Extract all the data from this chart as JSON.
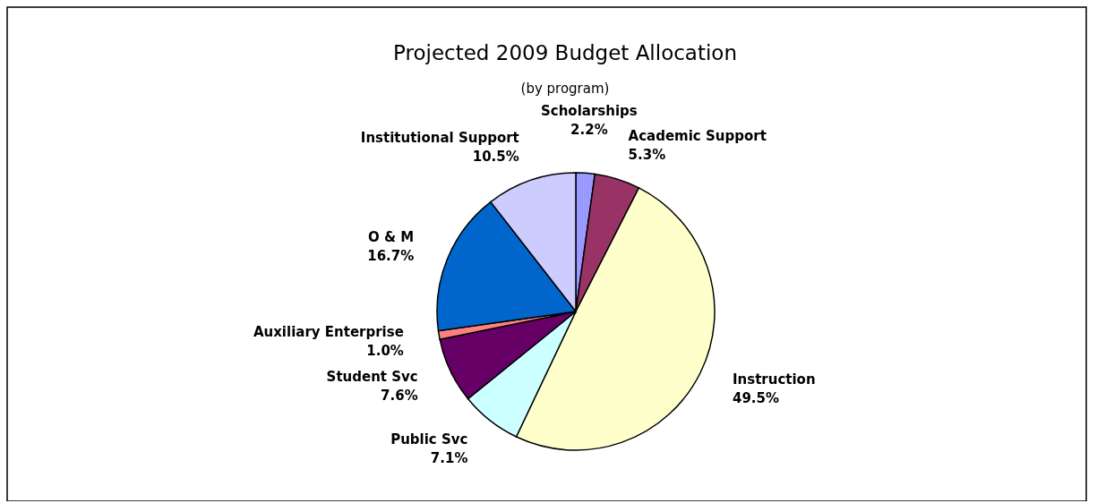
{
  "chart_data": {
    "type": "pie",
    "title": "Projected 2009 Budget Allocation",
    "subtitle": "(by program)",
    "categories": [
      "Scholarships",
      "Academic Support",
      "Instruction",
      "Public Svc",
      "Student Svc",
      "Auxiliary Enterprise",
      "O & M",
      "Institutional Support"
    ],
    "values": [
      2.2,
      5.3,
      49.5,
      7.1,
      7.6,
      1.0,
      16.7,
      10.5
    ],
    "value_labels": [
      "2.2%",
      "5.3%",
      "49.5%",
      "7.1%",
      "7.6%",
      "1.0%",
      "16.7%",
      "10.5%"
    ],
    "colors": [
      "#9999ff",
      "#993366",
      "#ffffcc",
      "#ccffff",
      "#660066",
      "#ff8080",
      "#0066cc",
      "#ccccff"
    ]
  }
}
